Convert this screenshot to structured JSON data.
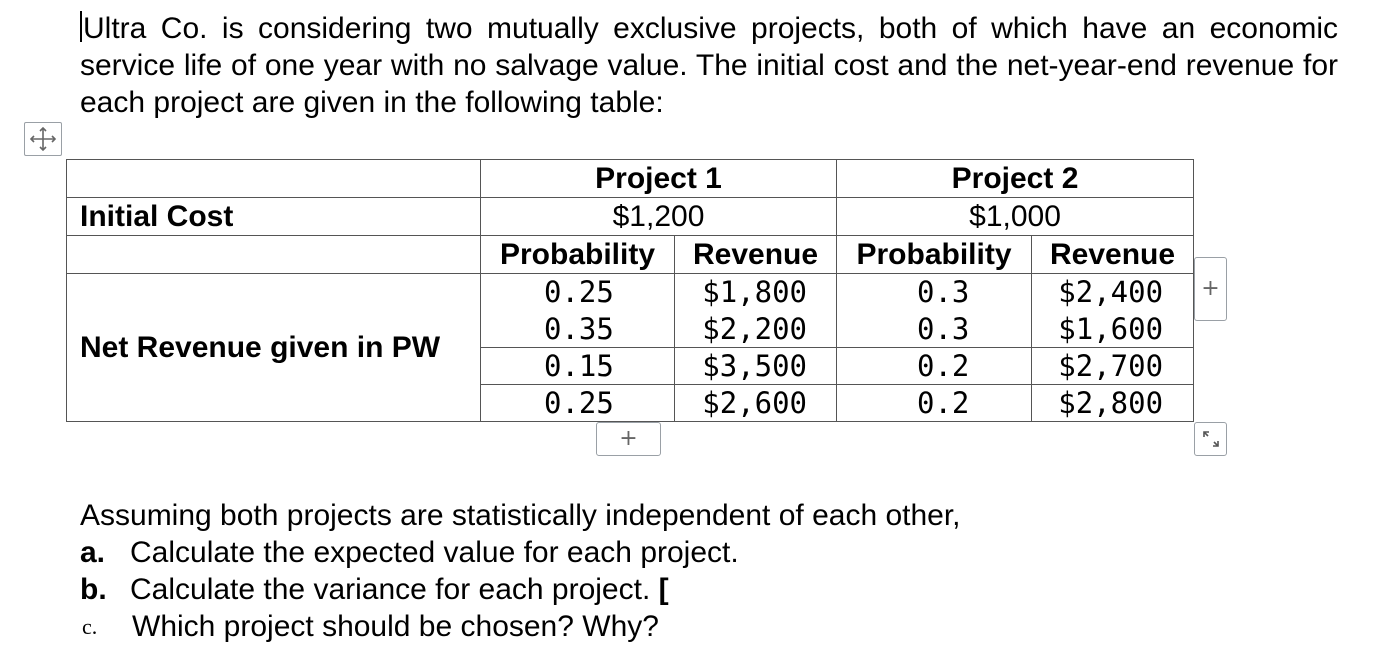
{
  "intro": "Ultra Co. is considering two mutually exclusive projects, both of which have an economic service life of one year with no salvage value. The initial cost and the net-year-end revenue for each project are given in the following table:",
  "table": {
    "project1_header": "Project 1",
    "project2_header": "Project 2",
    "initial_cost_label": "Initial Cost",
    "project1_cost": "$1,200",
    "project2_cost": "$1,000",
    "probability_header": "Probability",
    "revenue_header": "Revenue",
    "net_revenue_label": "Net Revenue given in PW",
    "rows": [
      {
        "p1_prob": "0.25",
        "p1_rev": "$1,800",
        "p2_prob": "0.3",
        "p2_rev": "$2,400"
      },
      {
        "p1_prob": "0.35",
        "p1_rev": "$2,200",
        "p2_prob": "0.3",
        "p2_rev": "$1,600"
      },
      {
        "p1_prob": "0.15",
        "p1_rev": "$3,500",
        "p2_prob": "0.2",
        "p2_rev": "$2,700"
      },
      {
        "p1_prob": "0.25",
        "p1_rev": "$2,600",
        "p2_prob": "0.2",
        "p2_rev": "$2,800"
      }
    ]
  },
  "editor_controls": {
    "add_symbol": "+",
    "move_icon": "move-arrows-icon",
    "resize_icon": "resize-diagonal-icon"
  },
  "questions": {
    "intro": "Assuming both projects are statistically independent of each other,",
    "items": [
      {
        "marker": "a.",
        "text": "Calculate the expected value for each project."
      },
      {
        "marker": "b.",
        "text": "Calculate the variance for each project. ["
      },
      {
        "marker": "c.",
        "text": "Which project should be chosen? Why?"
      }
    ]
  }
}
